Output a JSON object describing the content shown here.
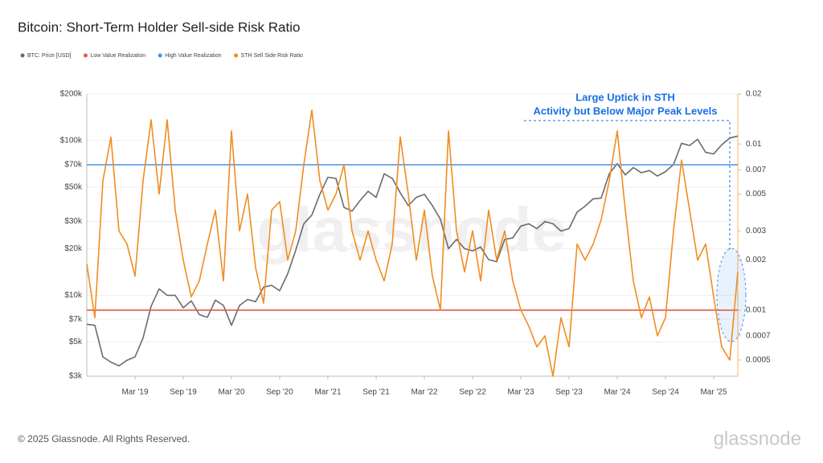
{
  "chart_data": {
    "type": "line",
    "title": "Bitcoin: Short-Term Holder Sell-side Risk Ratio",
    "footer": "© 2025 Glassnode. All Rights Reserved.",
    "watermark": "glassnode",
    "brand": "glassnode",
    "annotations": [
      "Large Uptick in STH",
      "Activity but Below Major Peak Levels"
    ],
    "log_scale": true,
    "grid": true,
    "legend": "top-left",
    "xlim": [
      "2018-09",
      "2025-06"
    ],
    "xticks": [
      {
        "value": "2019-03",
        "label": "Mar '19"
      },
      {
        "value": "2019-09",
        "label": "Sep '19"
      },
      {
        "value": "2020-03",
        "label": "Mar '20"
      },
      {
        "value": "2020-09",
        "label": "Sep '20"
      },
      {
        "value": "2021-03",
        "label": "Mar '21"
      },
      {
        "value": "2021-09",
        "label": "Sep '21"
      },
      {
        "value": "2022-03",
        "label": "Mar '22"
      },
      {
        "value": "2022-09",
        "label": "Sep '22"
      },
      {
        "value": "2023-03",
        "label": "Mar '23"
      },
      {
        "value": "2023-09",
        "label": "Sep '23"
      },
      {
        "value": "2024-03",
        "label": "Mar '24"
      },
      {
        "value": "2024-09",
        "label": "Sep '24"
      },
      {
        "value": "2025-03",
        "label": "Mar '25"
      }
    ],
    "ylim": [
      3000,
      200000
    ],
    "yticks": [
      {
        "value": 200000,
        "label": "$200k"
      },
      {
        "value": 100000,
        "label": "$100k"
      },
      {
        "value": 70000,
        "label": "$70k"
      },
      {
        "value": 50000,
        "label": "$50k"
      },
      {
        "value": 30000,
        "label": "$30k"
      },
      {
        "value": 20000,
        "label": "$20k"
      },
      {
        "value": 10000,
        "label": "$10k"
      },
      {
        "value": 7000,
        "label": "$7k"
      },
      {
        "value": 5000,
        "label": "$5k"
      },
      {
        "value": 3000,
        "label": "$3k"
      }
    ],
    "y2lim": [
      0.0004,
      0.02
    ],
    "y2ticks": [
      0.02,
      0.01,
      0.007,
      0.005,
      0.003,
      0.002,
      0.001,
      0.0007,
      0.0005
    ],
    "x": [
      "2018-09",
      "2018-10",
      "2018-11",
      "2018-12",
      "2019-01",
      "2019-02",
      "2019-03",
      "2019-04",
      "2019-05",
      "2019-06",
      "2019-07",
      "2019-08",
      "2019-09",
      "2019-10",
      "2019-11",
      "2019-12",
      "2020-01",
      "2020-02",
      "2020-03",
      "2020-04",
      "2020-05",
      "2020-06",
      "2020-07",
      "2020-08",
      "2020-09",
      "2020-10",
      "2020-11",
      "2020-12",
      "2021-01",
      "2021-02",
      "2021-03",
      "2021-04",
      "2021-05",
      "2021-06",
      "2021-07",
      "2021-08",
      "2021-09",
      "2021-10",
      "2021-11",
      "2021-12",
      "2022-01",
      "2022-02",
      "2022-03",
      "2022-04",
      "2022-05",
      "2022-06",
      "2022-07",
      "2022-08",
      "2022-09",
      "2022-10",
      "2022-11",
      "2022-12",
      "2023-01",
      "2023-02",
      "2023-03",
      "2023-04",
      "2023-05",
      "2023-06",
      "2023-07",
      "2023-08",
      "2023-09",
      "2023-10",
      "2023-11",
      "2023-12",
      "2024-01",
      "2024-02",
      "2024-03",
      "2024-04",
      "2024-05",
      "2024-06",
      "2024-07",
      "2024-08",
      "2024-09",
      "2024-10",
      "2024-11",
      "2024-12",
      "2025-01",
      "2025-02",
      "2025-03",
      "2025-04",
      "2025-05",
      "2025-06"
    ],
    "series": [
      {
        "name": "BTC: Price [USD]",
        "color": "#6b6b6b",
        "axis": "y",
        "values": [
          6500,
          6400,
          4000,
          3700,
          3500,
          3800,
          4000,
          5300,
          8500,
          11000,
          10000,
          10000,
          8300,
          9200,
          7500,
          7200,
          9300,
          8600,
          6400,
          8600,
          9400,
          9100,
          11300,
          11600,
          10700,
          13800,
          19600,
          29000,
          33000,
          45000,
          58000,
          57000,
          37000,
          35000,
          41000,
          47000,
          43000,
          61000,
          57000,
          46000,
          38000,
          43000,
          45000,
          38000,
          31000,
          20000,
          23000,
          20000,
          19400,
          20500,
          17000,
          16500,
          23000,
          23500,
          28000,
          29000,
          27000,
          30000,
          29000,
          26000,
          27000,
          34500,
          37700,
          42000,
          42500,
          61000,
          71000,
          60000,
          67000,
          62000,
          64000,
          59000,
          63000,
          70000,
          96000,
          93000,
          102000,
          84000,
          82000,
          94000,
          104000,
          107000
        ]
      },
      {
        "name": "Low Value Realization",
        "color": "#e8574a",
        "axis": "y2",
        "value": 0.001
      },
      {
        "name": "High Value Realization",
        "color": "#4a8fe8",
        "axis": "y2",
        "value": 0.0075
      },
      {
        "name": "STH Sell Side Risk Ratio",
        "color": "#f28c1e",
        "axis": "y2",
        "values": [
          0.0019,
          0.0009,
          0.006,
          0.011,
          0.003,
          0.0025,
          0.0016,
          0.006,
          0.014,
          0.005,
          0.014,
          0.004,
          0.002,
          0.0012,
          0.0015,
          0.0025,
          0.004,
          0.0015,
          0.012,
          0.003,
          0.005,
          0.0018,
          0.0011,
          0.004,
          0.0045,
          0.002,
          0.003,
          0.0075,
          0.016,
          0.006,
          0.004,
          0.005,
          0.0075,
          0.003,
          0.002,
          0.003,
          0.002,
          0.0015,
          0.0025,
          0.011,
          0.005,
          0.002,
          0.004,
          0.0016,
          0.001,
          0.012,
          0.003,
          0.0017,
          0.003,
          0.0015,
          0.004,
          0.002,
          0.003,
          0.0015,
          0.001,
          0.0008,
          0.0006,
          0.0007,
          0.0004,
          0.0009,
          0.0006,
          0.0025,
          0.002,
          0.0025,
          0.0035,
          0.006,
          0.012,
          0.004,
          0.0015,
          0.0009,
          0.0012,
          0.0007,
          0.0009,
          0.003,
          0.008,
          0.004,
          0.002,
          0.0025,
          0.0012,
          0.0006,
          0.0005,
          0.0017
        ]
      }
    ]
  }
}
